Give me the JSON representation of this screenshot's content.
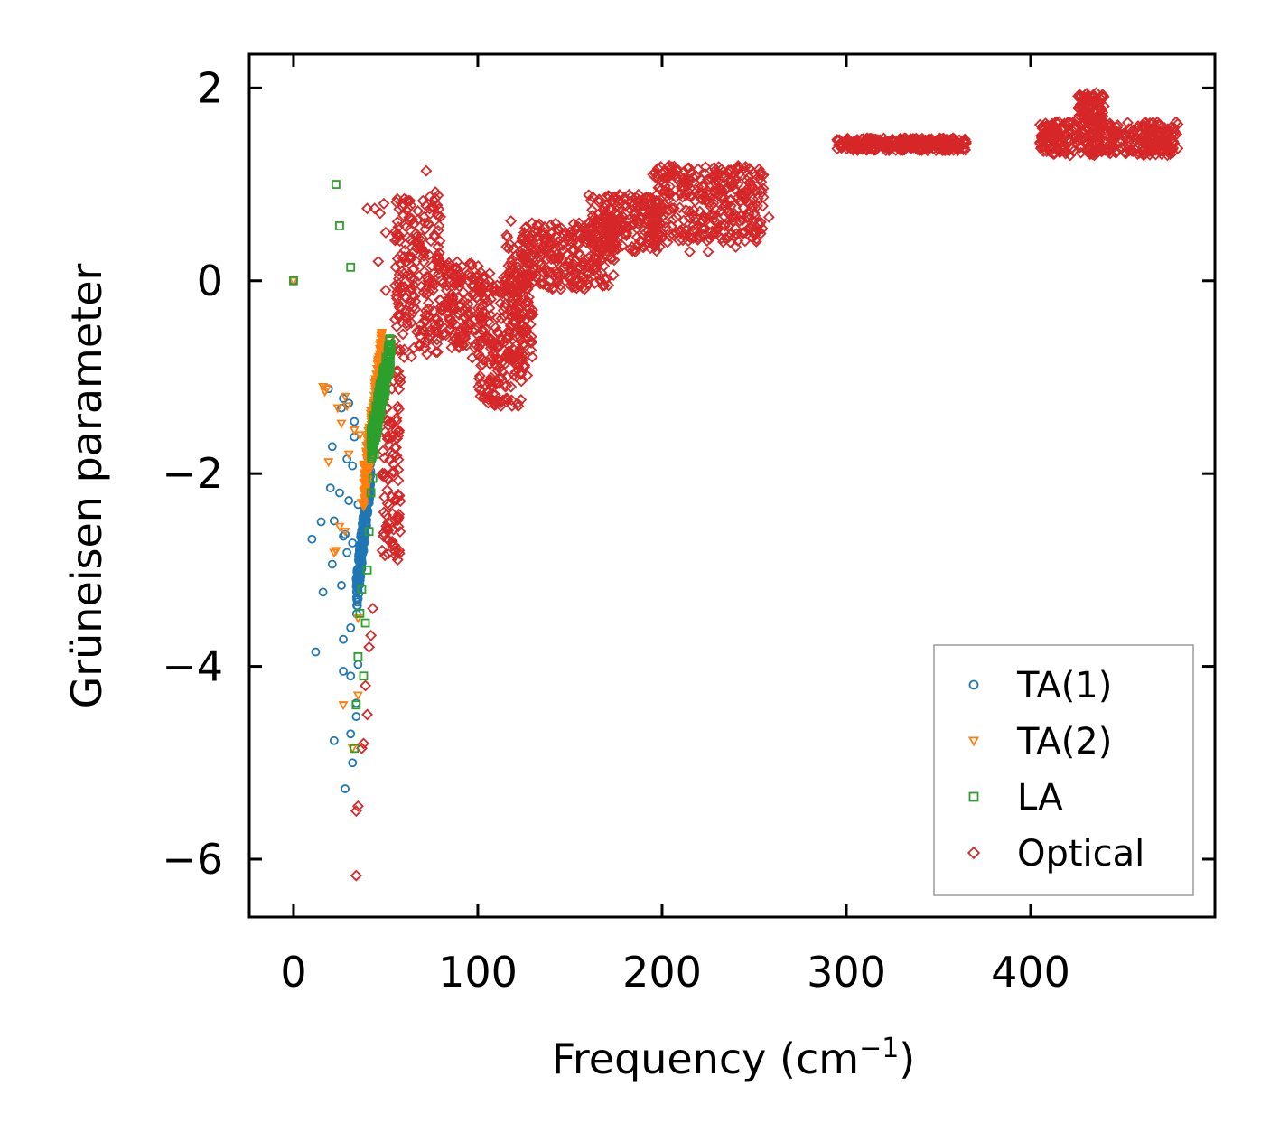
{
  "chart_data": {
    "type": "scatter",
    "title": "",
    "xlabel_main": "Frequency (cm",
    "xlabel_sup": "−1",
    "xlabel_close": ")",
    "ylabel": "Grüneisen parameter",
    "xlim": [
      -24,
      500
    ],
    "ylim": [
      -6.6,
      2.35
    ],
    "xticks": [
      0,
      100,
      200,
      300,
      400
    ],
    "xtick_labels": [
      "0",
      "100",
      "200",
      "300",
      "400"
    ],
    "yticks": [
      2,
      0,
      -2,
      -4,
      -6
    ],
    "ytick_labels": [
      "2",
      "0",
      "−2",
      "−4",
      "−6"
    ],
    "legend_position": "lower-right",
    "series": [
      {
        "name": "TA(1)",
        "label": "TA(1)",
        "marker": "circle",
        "color": "#1f77b4",
        "points": [
          [
            0,
            0
          ],
          [
            10,
            -2.68
          ],
          [
            12,
            -3.85
          ],
          [
            15,
            -2.5
          ],
          [
            16,
            -3.23
          ],
          [
            19,
            -1.12
          ],
          [
            20,
            -2.15
          ],
          [
            21,
            -1.72
          ],
          [
            21,
            -2.94
          ],
          [
            22,
            -2.49
          ],
          [
            22,
            -4.77
          ],
          [
            25,
            -2.2
          ],
          [
            26,
            -1.32
          ],
          [
            26,
            -3.16
          ],
          [
            27,
            -2.65
          ],
          [
            27,
            -1.22
          ],
          [
            27,
            -3.72
          ],
          [
            27,
            -4.05
          ],
          [
            28,
            -2.63
          ],
          [
            28,
            -5.27
          ],
          [
            29,
            -1.85
          ],
          [
            29,
            -2.82
          ],
          [
            30,
            -1.27
          ],
          [
            30,
            -2.28
          ],
          [
            31,
            -3.6
          ],
          [
            31,
            -4.1
          ],
          [
            31,
            -4.7
          ],
          [
            32,
            -5.0
          ],
          [
            32,
            -1.92
          ],
          [
            32,
            -2.72
          ],
          [
            33,
            -1.46
          ],
          [
            33,
            -1.62
          ],
          [
            34,
            -4.52
          ],
          [
            34,
            -4.38
          ],
          [
            35,
            -3.98
          ],
          [
            35,
            -2.32
          ]
        ],
        "cluster": {
          "x": [
            34,
            42
          ],
          "y": [
            -3.5,
            -1.7
          ],
          "count": 260
        }
      },
      {
        "name": "TA(2)",
        "label": "TA(2)",
        "marker": "triangle-down",
        "color": "#ff7f0e",
        "points": [
          [
            0,
            0
          ],
          [
            16,
            -1.1
          ],
          [
            17,
            -1.15
          ],
          [
            18,
            -1.12
          ],
          [
            19,
            -1.88
          ],
          [
            22,
            -2.82
          ],
          [
            23,
            -2.8
          ],
          [
            24,
            -1.32
          ],
          [
            25,
            -2.55
          ],
          [
            26,
            -1.48
          ],
          [
            27,
            -4.4
          ],
          [
            28,
            -1.2
          ],
          [
            28,
            -2.6
          ],
          [
            29,
            -1.3
          ],
          [
            30,
            -1.8
          ],
          [
            32,
            -4.85
          ],
          [
            33,
            -1.55
          ],
          [
            35,
            -3.5
          ],
          [
            35,
            -4.3
          ],
          [
            36,
            -1.6
          ],
          [
            37,
            -2.3
          ]
        ],
        "cluster": {
          "x": [
            38,
            48
          ],
          "y": [
            -2.4,
            -0.5
          ],
          "count": 220
        }
      },
      {
        "name": "LA",
        "label": "LA",
        "marker": "square",
        "color": "#2ca02c",
        "points": [
          [
            0,
            0
          ],
          [
            23,
            1.0
          ],
          [
            25,
            0.57
          ],
          [
            31,
            0.14
          ],
          [
            33,
            -4.85
          ],
          [
            34,
            -4.4
          ],
          [
            35,
            -3.9
          ],
          [
            36,
            -3.45
          ],
          [
            37,
            -3.2
          ],
          [
            38,
            -4.1
          ],
          [
            39,
            -3.55
          ],
          [
            40,
            -3.0
          ],
          [
            41,
            -2.6
          ],
          [
            42,
            -2.2
          ],
          [
            43,
            -2.05
          ],
          [
            44,
            -1.8
          ]
        ],
        "cluster": {
          "x": [
            42,
            53
          ],
          "y": [
            -1.9,
            -0.5
          ],
          "count": 200
        }
      },
      {
        "name": "Optical",
        "label": "Optical",
        "marker": "diamond",
        "color": "#d62728",
        "points": [
          [
            34,
            -6.17
          ],
          [
            34,
            -5.5
          ],
          [
            35,
            -5.45
          ],
          [
            37,
            -4.85
          ],
          [
            38,
            -4.8
          ],
          [
            39,
            -4.2
          ],
          [
            40,
            -4.5
          ],
          [
            41,
            -3.8
          ],
          [
            42,
            -3.68
          ],
          [
            43,
            -3.4
          ],
          [
            40,
            0.75
          ],
          [
            44,
            0.75
          ],
          [
            47,
            0.7
          ],
          [
            49,
            0.8
          ],
          [
            50,
            0.5
          ],
          [
            46,
            0.2
          ],
          [
            50,
            -0.1
          ],
          [
            72,
            1.14
          ],
          [
            77,
            0.92
          ],
          [
            83,
            -0.1
          ],
          [
            85,
            -0.5
          ],
          [
            95,
            -0.45
          ],
          [
            97,
            -0.8
          ],
          [
            107,
            -0.7
          ],
          [
            112,
            -0.9
          ],
          [
            118,
            -1.1
          ],
          [
            122,
            -1.3
          ],
          [
            118,
            0.62
          ],
          [
            130,
            0.3
          ],
          [
            140,
            0.5
          ],
          [
            150,
            0.5
          ],
          [
            160,
            0.6
          ],
          [
            175,
            0.7
          ],
          [
            185,
            0.8
          ],
          [
            195,
            1.1
          ],
          [
            215,
            0.3
          ],
          [
            225,
            0.3
          ],
          [
            237,
            0.4
          ],
          [
            240,
            0.35
          ],
          [
            250,
            0.7
          ],
          [
            258,
            0.66
          ]
        ],
        "bands": [
          {
            "x": [
              48,
              58
            ],
            "y": [
              -2.9,
              -0.9
            ],
            "count": 100
          },
          {
            "x": [
              55,
              80
            ],
            "y": [
              -0.8,
              0.9
            ],
            "count": 220
          },
          {
            "x": [
              80,
              105
            ],
            "y": [
              -0.7,
              0.2
            ],
            "count": 160
          },
          {
            "x": [
              100,
              125
            ],
            "y": [
              -1.3,
              0.1
            ],
            "count": 200
          },
          {
            "x": [
              115,
              130
            ],
            "y": [
              -1.0,
              0.5
            ],
            "count": 120
          },
          {
            "x": [
              125,
              175
            ],
            "y": [
              -0.1,
              0.6
            ],
            "count": 260
          },
          {
            "x": [
              160,
              200
            ],
            "y": [
              0.3,
              0.9
            ],
            "count": 220
          },
          {
            "x": [
              195,
              255
            ],
            "y": [
              0.4,
              1.2
            ],
            "count": 340
          },
          {
            "x": [
              295,
              365
            ],
            "y": [
              1.35,
              1.48
            ],
            "count": 300
          },
          {
            "x": [
              405,
              480
            ],
            "y": [
              1.3,
              1.65
            ],
            "count": 380
          },
          {
            "x": [
              425,
              440
            ],
            "y": [
              1.65,
              1.95
            ],
            "count": 80
          }
        ]
      }
    ]
  }
}
